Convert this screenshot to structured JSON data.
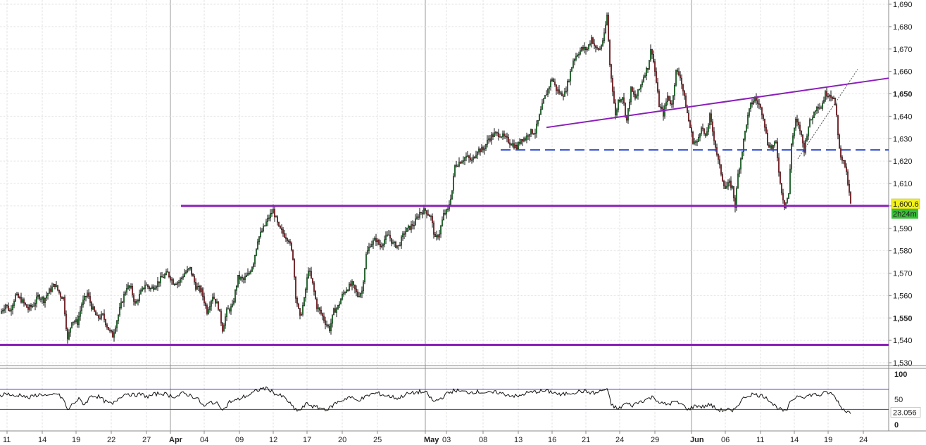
{
  "chart_data": [
    {
      "type": "candlestick",
      "panel": "price",
      "x_ticks": [
        "11",
        "14",
        "19",
        "22",
        "27",
        "Apr",
        "04",
        "09",
        "12",
        "17",
        "20",
        "25",
        "May",
        "03",
        "08",
        "13",
        "16",
        "21",
        "24",
        "29",
        "Jun",
        "06",
        "11",
        "14",
        "19",
        "24"
      ],
      "bold_x_ticks": [
        "Apr",
        "May",
        "Jun"
      ],
      "y_ticks": [
        1530,
        1540,
        1550,
        1560,
        1570,
        1580,
        1590,
        1600,
        1610,
        1620,
        1630,
        1640,
        1650,
        1660,
        1670,
        1680,
        1690
      ],
      "bold_y_ticks": [
        1550,
        1650
      ],
      "ylim": [
        1527,
        1692
      ],
      "grid": true,
      "last_price_label": "1,600.6",
      "countdown_label": "2h24m",
      "path": [
        [
          0,
          1552
        ],
        [
          8,
          1556
        ],
        [
          14,
          1553
        ],
        [
          22,
          1560
        ],
        [
          30,
          1558
        ],
        [
          40,
          1554
        ],
        [
          48,
          1556
        ],
        [
          55,
          1560
        ],
        [
          62,
          1558
        ],
        [
          70,
          1562
        ],
        [
          78,
          1565
        ],
        [
          86,
          1560
        ],
        [
          90,
          1559
        ],
        [
          96,
          1540
        ],
        [
          102,
          1549
        ],
        [
          110,
          1548
        ],
        [
          116,
          1556
        ],
        [
          124,
          1561
        ],
        [
          130,
          1555
        ],
        [
          138,
          1550
        ],
        [
          146,
          1551
        ],
        [
          154,
          1545
        ],
        [
          160,
          1542
        ],
        [
          166,
          1549
        ],
        [
          172,
          1556
        ],
        [
          180,
          1564
        ],
        [
          186,
          1563
        ],
        [
          192,
          1556
        ],
        [
          198,
          1560
        ],
        [
          206,
          1565
        ],
        [
          214,
          1563
        ],
        [
          222,
          1565
        ],
        [
          230,
          1568
        ],
        [
          238,
          1570
        ],
        [
          246,
          1566
        ],
        [
          254,
          1566
        ],
        [
          262,
          1570
        ],
        [
          270,
          1572
        ],
        [
          278,
          1564
        ],
        [
          286,
          1562
        ],
        [
          294,
          1553
        ],
        [
          302,
          1560
        ],
        [
          310,
          1555
        ],
        [
          316,
          1545
        ],
        [
          322,
          1553
        ],
        [
          330,
          1555
        ],
        [
          338,
          1568
        ],
        [
          346,
          1567
        ],
        [
          354,
          1570
        ],
        [
          360,
          1575
        ],
        [
          366,
          1585
        ],
        [
          374,
          1590
        ],
        [
          382,
          1595
        ],
        [
          388,
          1598
        ],
        [
          396,
          1590
        ],
        [
          404,
          1587
        ],
        [
          410,
          1585
        ],
        [
          416,
          1577
        ],
        [
          420,
          1560
        ],
        [
          426,
          1550
        ],
        [
          432,
          1558
        ],
        [
          438,
          1572
        ],
        [
          444,
          1565
        ],
        [
          450,
          1555
        ],
        [
          456,
          1552
        ],
        [
          462,
          1548
        ],
        [
          468,
          1545
        ],
        [
          474,
          1553
        ],
        [
          480,
          1555
        ],
        [
          486,
          1560
        ],
        [
          492,
          1563
        ],
        [
          500,
          1565
        ],
        [
          508,
          1560
        ],
        [
          514,
          1562
        ],
        [
          520,
          1578
        ],
        [
          526,
          1583
        ],
        [
          534,
          1585
        ],
        [
          540,
          1582
        ],
        [
          546,
          1585
        ],
        [
          552,
          1587
        ],
        [
          558,
          1583
        ],
        [
          566,
          1582
        ],
        [
          574,
          1588
        ],
        [
          580,
          1590
        ],
        [
          588,
          1592
        ],
        [
          596,
          1597
        ],
        [
          604,
          1598
        ],
        [
          612,
          1595
        ],
        [
          618,
          1585
        ],
        [
          624,
          1588
        ],
        [
          630,
          1596
        ],
        [
          636,
          1598
        ],
        [
          642,
          1607
        ],
        [
          646,
          1618
        ],
        [
          654,
          1620
        ],
        [
          662,
          1622
        ],
        [
          670,
          1620
        ],
        [
          678,
          1625
        ],
        [
          686,
          1625
        ],
        [
          694,
          1630
        ],
        [
          702,
          1632
        ],
        [
          710,
          1632
        ],
        [
          718,
          1630
        ],
        [
          726,
          1628
        ],
        [
          734,
          1626
        ],
        [
          740,
          1630
        ],
        [
          746,
          1630
        ],
        [
          752,
          1633
        ],
        [
          760,
          1633
        ],
        [
          766,
          1640
        ],
        [
          772,
          1647
        ],
        [
          778,
          1652
        ],
        [
          784,
          1657
        ],
        [
          790,
          1652
        ],
        [
          796,
          1650
        ],
        [
          802,
          1650
        ],
        [
          808,
          1657
        ],
        [
          814,
          1665
        ],
        [
          820,
          1668
        ],
        [
          826,
          1670
        ],
        [
          834,
          1670
        ],
        [
          840,
          1675
        ],
        [
          846,
          1670
        ],
        [
          852,
          1670
        ],
        [
          858,
          1676
        ],
        [
          862,
          1685
        ],
        [
          866,
          1663
        ],
        [
          870,
          1652
        ],
        [
          874,
          1640
        ],
        [
          878,
          1647
        ],
        [
          884,
          1649
        ],
        [
          890,
          1638
        ],
        [
          896,
          1652
        ],
        [
          902,
          1648
        ],
        [
          908,
          1652
        ],
        [
          914,
          1658
        ],
        [
          920,
          1662
        ],
        [
          925,
          1671
        ],
        [
          930,
          1660
        ],
        [
          936,
          1645
        ],
        [
          942,
          1641
        ],
        [
          948,
          1649
        ],
        [
          954,
          1645
        ],
        [
          960,
          1660
        ],
        [
          966,
          1658
        ],
        [
          972,
          1648
        ],
        [
          978,
          1638
        ],
        [
          984,
          1629
        ],
        [
          990,
          1628
        ],
        [
          996,
          1636
        ],
        [
          1002,
          1630
        ],
        [
          1008,
          1640
        ],
        [
          1014,
          1630
        ],
        [
          1020,
          1620
        ],
        [
          1026,
          1612
        ],
        [
          1030,
          1608
        ],
        [
          1036,
          1610
        ],
        [
          1040,
          1608
        ],
        [
          1044,
          1600
        ],
        [
          1048,
          1614
        ],
        [
          1054,
          1625
        ],
        [
          1060,
          1637
        ],
        [
          1066,
          1645
        ],
        [
          1072,
          1648
        ],
        [
          1078,
          1645
        ],
        [
          1084,
          1640
        ],
        [
          1090,
          1628
        ],
        [
          1096,
          1626
        ],
        [
          1102,
          1628
        ],
        [
          1108,
          1610
        ],
        [
          1114,
          1600
        ],
        [
          1120,
          1605
        ],
        [
          1124,
          1628
        ],
        [
          1130,
          1638
        ],
        [
          1136,
          1634
        ],
        [
          1142,
          1625
        ],
        [
          1148,
          1636
        ],
        [
          1154,
          1640
        ],
        [
          1160,
          1645
        ],
        [
          1166,
          1644
        ],
        [
          1172,
          1650
        ],
        [
          1178,
          1650
        ],
        [
          1184,
          1648
        ],
        [
          1188,
          1640
        ],
        [
          1192,
          1625
        ],
        [
          1196,
          1621
        ],
        [
          1200,
          1618
        ],
        [
          1204,
          1610
        ],
        [
          1208,
          1600.6
        ]
      ],
      "lines": [
        {
          "style": "solid",
          "color": "#8a1fb8",
          "from": [
            257,
            1600
          ],
          "to": [
            1262,
            1600
          ]
        },
        {
          "style": "solid",
          "color": "#8a1fb8",
          "from": [
            0,
            1538
          ],
          "to": [
            1262,
            1538
          ]
        },
        {
          "style": "solid",
          "color": "#8a1fb8",
          "from": [
            776,
            1635
          ],
          "to": [
            1262,
            1657
          ]
        },
        {
          "style": "dashed",
          "color": "#1f3fcf",
          "from": [
            711,
            1625
          ],
          "to": [
            1262,
            1625
          ]
        },
        {
          "style": "dotted",
          "color": "#555555",
          "from": [
            1133,
            1621
          ],
          "to": [
            1218,
            1661
          ]
        }
      ]
    },
    {
      "type": "line",
      "panel": "oscillator",
      "y_ticks": [
        0,
        50,
        100
      ],
      "ylim": [
        0,
        100
      ],
      "levels": [
        70,
        30
      ],
      "last_value_label": "23.056",
      "values": [
        [
          0,
          58
        ],
        [
          10,
          62
        ],
        [
          20,
          55
        ],
        [
          30,
          60
        ],
        [
          40,
          52
        ],
        [
          50,
          58
        ],
        [
          60,
          60
        ],
        [
          70,
          55
        ],
        [
          80,
          62
        ],
        [
          90,
          50
        ],
        [
          96,
          28
        ],
        [
          104,
          42
        ],
        [
          112,
          50
        ],
        [
          120,
          40
        ],
        [
          130,
          58
        ],
        [
          140,
          55
        ],
        [
          150,
          45
        ],
        [
          160,
          40
        ],
        [
          170,
          55
        ],
        [
          180,
          62
        ],
        [
          190,
          58
        ],
        [
          200,
          60
        ],
        [
          210,
          55
        ],
        [
          220,
          60
        ],
        [
          230,
          62
        ],
        [
          240,
          58
        ],
        [
          250,
          55
        ],
        [
          260,
          62
        ],
        [
          270,
          58
        ],
        [
          280,
          52
        ],
        [
          290,
          35
        ],
        [
          300,
          45
        ],
        [
          310,
          40
        ],
        [
          318,
          30
        ],
        [
          326,
          45
        ],
        [
          336,
          48
        ],
        [
          346,
          55
        ],
        [
          356,
          60
        ],
        [
          366,
          68
        ],
        [
          374,
          72
        ],
        [
          382,
          70
        ],
        [
          392,
          60
        ],
        [
          402,
          55
        ],
        [
          410,
          45
        ],
        [
          418,
          30
        ],
        [
          426,
          28
        ],
        [
          436,
          42
        ],
        [
          446,
          35
        ],
        [
          456,
          32
        ],
        [
          466,
          30
        ],
        [
          476,
          42
        ],
        [
          486,
          48
        ],
        [
          496,
          55
        ],
        [
          506,
          48
        ],
        [
          516,
          52
        ],
        [
          526,
          60
        ],
        [
          536,
          62
        ],
        [
          546,
          58
        ],
        [
          556,
          55
        ],
        [
          566,
          52
        ],
        [
          576,
          60
        ],
        [
          586,
          62
        ],
        [
          596,
          65
        ],
        [
          606,
          62
        ],
        [
          616,
          45
        ],
        [
          626,
          52
        ],
        [
          636,
          62
        ],
        [
          646,
          68
        ],
        [
          656,
          65
        ],
        [
          666,
          64
        ],
        [
          676,
          65
        ],
        [
          686,
          64
        ],
        [
          696,
          62
        ],
        [
          706,
          64
        ],
        [
          716,
          60
        ],
        [
          726,
          58
        ],
        [
          736,
          55
        ],
        [
          746,
          62
        ],
        [
          756,
          64
        ],
        [
          766,
          66
        ],
        [
          776,
          66
        ],
        [
          786,
          64
        ],
        [
          796,
          58
        ],
        [
          806,
          62
        ],
        [
          816,
          64
        ],
        [
          826,
          66
        ],
        [
          836,
          64
        ],
        [
          846,
          62
        ],
        [
          856,
          68
        ],
        [
          862,
          70
        ],
        [
          868,
          40
        ],
        [
          878,
          30
        ],
        [
          888,
          42
        ],
        [
          898,
          38
        ],
        [
          908,
          45
        ],
        [
          918,
          50
        ],
        [
          928,
          55
        ],
        [
          938,
          42
        ],
        [
          948,
          40
        ],
        [
          958,
          45
        ],
        [
          968,
          40
        ],
        [
          978,
          30
        ],
        [
          988,
          38
        ],
        [
          998,
          35
        ],
        [
          1008,
          40
        ],
        [
          1018,
          30
        ],
        [
          1026,
          28
        ],
        [
          1034,
          30
        ],
        [
          1040,
          24
        ],
        [
          1048,
          40
        ],
        [
          1058,
          55
        ],
        [
          1068,
          60
        ],
        [
          1078,
          58
        ],
        [
          1088,
          55
        ],
        [
          1098,
          40
        ],
        [
          1108,
          30
        ],
        [
          1116,
          25
        ],
        [
          1124,
          48
        ],
        [
          1134,
          58
        ],
        [
          1144,
          55
        ],
        [
          1154,
          60
        ],
        [
          1164,
          58
        ],
        [
          1174,
          64
        ],
        [
          1182,
          60
        ],
        [
          1188,
          50
        ],
        [
          1194,
          35
        ],
        [
          1200,
          28
        ],
        [
          1208,
          23
        ]
      ]
    }
  ]
}
